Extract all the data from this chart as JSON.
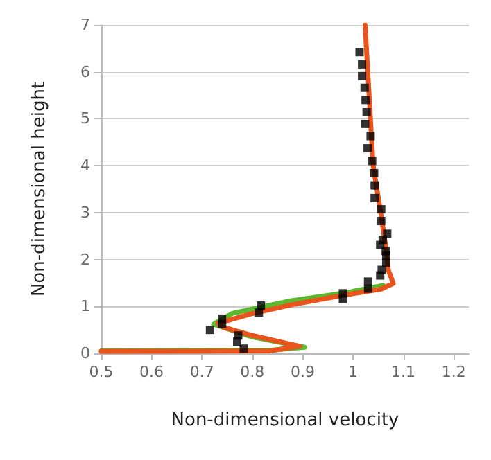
{
  "chart_data": {
    "type": "line",
    "xlabel": "Non-dimensional velocity",
    "ylabel": "Non-dimensional height",
    "xlim": [
      0.5,
      1.23
    ],
    "xticks": [
      0.5,
      0.6,
      0.7,
      0.8,
      0.9,
      1,
      1.1,
      1.2
    ],
    "ylim": [
      0,
      7
    ],
    "yticks": [
      0,
      1,
      2,
      3,
      4,
      5,
      6,
      7
    ],
    "grid": "y",
    "series": [
      {
        "marker": "none",
        "color": "#5cb82e",
        "x": [
          0.5,
          0.84,
          0.904,
          0.8,
          0.723,
          0.76,
          0.871,
          0.98,
          1.06
        ],
        "values": [
          0.05,
          0.07,
          0.13,
          0.35,
          0.62,
          0.85,
          1.11,
          1.28,
          1.45
        ]
      },
      {
        "marker": "none",
        "color": "#e8541c",
        "x": [
          0.5,
          0.834,
          0.894,
          0.8,
          0.742,
          0.732,
          0.797,
          0.88,
          0.982,
          1.056,
          1.08,
          1.07,
          1.066,
          1.055,
          1.04,
          1.024
        ],
        "values": [
          0.04,
          0.05,
          0.15,
          0.38,
          0.56,
          0.64,
          0.84,
          1.04,
          1.24,
          1.37,
          1.49,
          1.78,
          2.2,
          3.0,
          4.0,
          7.0
        ]
      },
      {
        "type": "scatter",
        "marker": "square",
        "color": "#000000",
        "x": [
          0.783,
          0.77,
          0.772,
          0.716,
          0.74,
          0.74,
          0.813,
          0.817,
          0.98,
          0.98,
          1.03,
          1.03,
          1.054,
          1.057,
          1.066,
          1.066,
          1.065,
          1.054,
          1.059,
          1.068,
          1.056,
          1.056,
          1.043,
          1.043,
          1.042,
          1.038,
          1.029,
          1.035,
          1.024,
          1.027,
          1.025,
          1.023,
          1.018,
          1.018,
          1.013
        ],
        "values": [
          0.1,
          0.25,
          0.38,
          0.5,
          0.62,
          0.74,
          0.87,
          1.02,
          1.16,
          1.28,
          1.38,
          1.53,
          1.66,
          1.78,
          1.93,
          2.08,
          2.18,
          2.31,
          2.42,
          2.55,
          2.82,
          3.07,
          3.31,
          3.58,
          3.84,
          4.1,
          4.37,
          4.63,
          4.89,
          5.14,
          5.4,
          5.66,
          5.91,
          6.16,
          6.42
        ]
      }
    ]
  }
}
